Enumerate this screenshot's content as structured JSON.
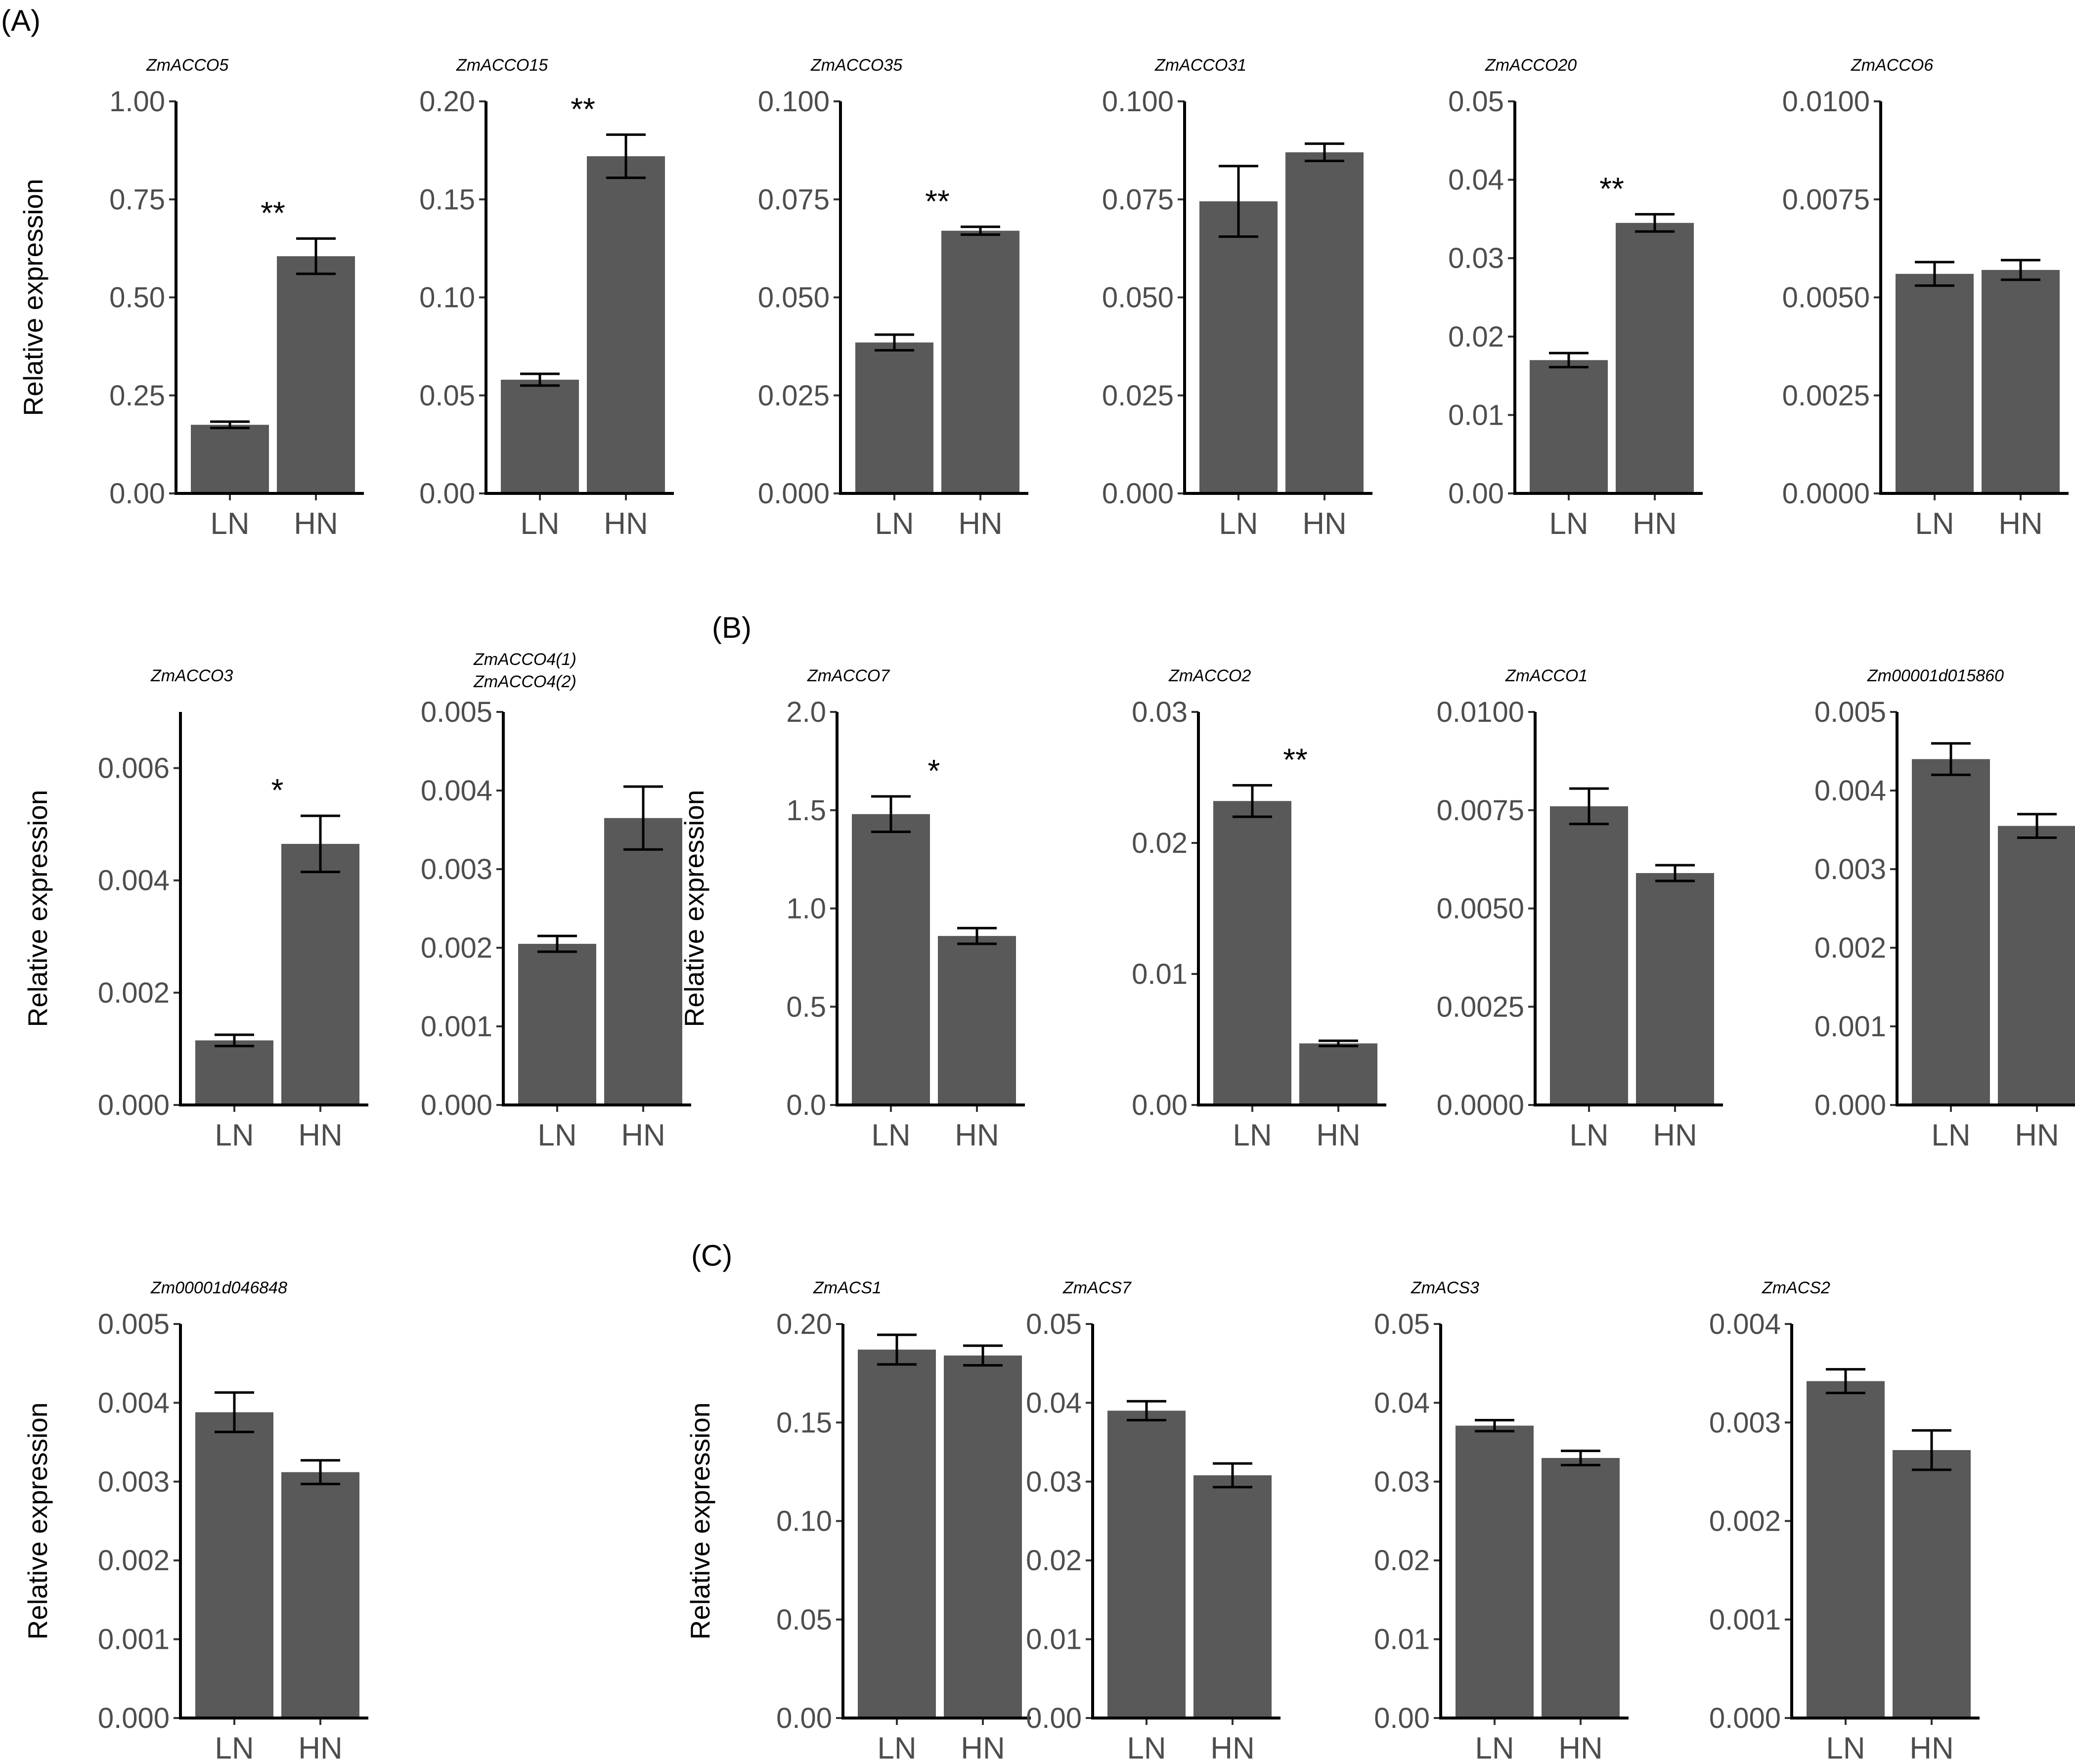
{
  "panel_labels": [
    "(A)",
    "(B)",
    "(C)"
  ],
  "chart_data": [
    {
      "type": "bar",
      "title": "ZmACCO5",
      "ylabel": "Relative expression",
      "categories": [
        "LN",
        "HN"
      ],
      "values": [
        0.175,
        0.605
      ],
      "errors": [
        0.008,
        0.045
      ],
      "ylim": [
        0,
        1.0
      ],
      "ticks": [
        0.0,
        0.25,
        0.5,
        0.75,
        1.0
      ],
      "tick_labels": [
        "0.00",
        "0.25",
        "0.50",
        "0.75",
        "1.00"
      ],
      "significance": "**"
    },
    {
      "type": "bar",
      "title": "ZmACCO15",
      "ylabel": "",
      "categories": [
        "LN",
        "HN"
      ],
      "values": [
        0.058,
        0.172
      ],
      "errors": [
        0.003,
        0.011
      ],
      "ylim": [
        0,
        0.2
      ],
      "ticks": [
        0,
        0.05,
        0.1,
        0.15,
        0.2
      ],
      "tick_labels": [
        "0.00",
        "0.05",
        "0.10",
        "0.15",
        "0.20"
      ],
      "significance": "**"
    },
    {
      "type": "bar",
      "title": "ZmACCO35",
      "ylabel": "",
      "categories": [
        "LN",
        "HN"
      ],
      "values": [
        0.0385,
        0.067
      ],
      "errors": [
        0.002,
        0.001
      ],
      "ylim": [
        0,
        0.1
      ],
      "ticks": [
        0,
        0.025,
        0.05,
        0.075,
        0.1
      ],
      "tick_labels": [
        "0.000",
        "0.025",
        "0.050",
        "0.075",
        "0.100"
      ],
      "significance": "**"
    },
    {
      "type": "bar",
      "title": "ZmACCO31",
      "ylabel": "",
      "categories": [
        "LN",
        "HN"
      ],
      "values": [
        0.0745,
        0.087
      ],
      "errors": [
        0.009,
        0.0022
      ],
      "ylim": [
        0,
        0.1
      ],
      "ticks": [
        0,
        0.025,
        0.05,
        0.075,
        0.1
      ],
      "tick_labels": [
        "0.000",
        "0.025",
        "0.050",
        "0.075",
        "0.100"
      ],
      "significance": ""
    },
    {
      "type": "bar",
      "title": "ZmACCO20",
      "ylabel": "",
      "categories": [
        "LN",
        "HN"
      ],
      "values": [
        0.017,
        0.0345
      ],
      "errors": [
        0.0009,
        0.0011
      ],
      "ylim": [
        0,
        0.05
      ],
      "ticks": [
        0,
        0.01,
        0.02,
        0.03,
        0.04,
        0.05
      ],
      "tick_labels": [
        "0.00",
        "0.01",
        "0.02",
        "0.03",
        "0.04",
        "0.05"
      ],
      "significance": "**"
    },
    {
      "type": "bar",
      "title": "ZmACCO6",
      "ylabel": "",
      "categories": [
        "LN",
        "HN"
      ],
      "values": [
        0.0056,
        0.0057
      ],
      "errors": [
        0.0003,
        0.00025
      ],
      "ylim": [
        0,
        0.01
      ],
      "ticks": [
        0,
        0.0025,
        0.005,
        0.0075,
        0.01
      ],
      "tick_labels": [
        "0.0000",
        "0.0025",
        "0.0050",
        "0.0075",
        "0.0100"
      ],
      "significance": ""
    },
    {
      "type": "bar",
      "title": "ZmACCO3",
      "ylabel": "Relative expression",
      "categories": [
        "LN",
        "HN"
      ],
      "values": [
        0.00115,
        0.00465
      ],
      "errors": [
        0.0001,
        0.0005
      ],
      "ylim": [
        0,
        0.007
      ],
      "ticks": [
        0,
        0.002,
        0.004,
        0.006
      ],
      "tick_labels": [
        "0.000",
        "0.002",
        "0.004",
        "0.006"
      ],
      "significance": "*"
    },
    {
      "type": "bar",
      "title": "ZmACCO4(1)",
      "title2": "ZmACCO4(2)",
      "ylabel": "",
      "categories": [
        "LN",
        "HN"
      ],
      "values": [
        0.00205,
        0.00365
      ],
      "errors": [
        0.0001,
        0.0004
      ],
      "ylim": [
        0,
        0.005
      ],
      "ticks": [
        0,
        0.001,
        0.002,
        0.003,
        0.004,
        0.005
      ],
      "tick_labels": [
        "0.000",
        "0.001",
        "0.002",
        "0.003",
        "0.004",
        "0.005"
      ],
      "significance": ""
    },
    {
      "type": "bar",
      "title": "ZmACCO7",
      "ylabel": "Relative expression",
      "categories": [
        "LN",
        "HN"
      ],
      "values": [
        1.48,
        0.86
      ],
      "errors": [
        0.09,
        0.04
      ],
      "ylim": [
        0,
        2.0
      ],
      "ticks": [
        0,
        0.5,
        1.0,
        1.5,
        2.0
      ],
      "tick_labels": [
        "0.0",
        "0.5",
        "1.0",
        "1.5",
        "2.0"
      ],
      "significance": "*"
    },
    {
      "type": "bar",
      "title": "ZmACCO2",
      "ylabel": "",
      "categories": [
        "LN",
        "HN"
      ],
      "values": [
        0.0232,
        0.0047
      ],
      "errors": [
        0.0012,
        0.0002
      ],
      "ylim": [
        0,
        0.03
      ],
      "ticks": [
        0,
        0.01,
        0.02,
        0.03
      ],
      "tick_labels": [
        "0.00",
        "0.01",
        "0.02",
        "0.03"
      ],
      "significance": "**"
    },
    {
      "type": "bar",
      "title": "ZmACCO1",
      "ylabel": "",
      "categories": [
        "LN",
        "HN"
      ],
      "values": [
        0.0076,
        0.0059
      ],
      "errors": [
        0.00045,
        0.0002
      ],
      "ylim": [
        0,
        0.01
      ],
      "ticks": [
        0,
        0.0025,
        0.005,
        0.0075,
        0.01
      ],
      "tick_labels": [
        "0.0000",
        "0.0025",
        "0.0050",
        "0.0075",
        "0.0100"
      ],
      "significance": ""
    },
    {
      "type": "bar",
      "title": "Zm00001d015860",
      "ylabel": "",
      "categories": [
        "LN",
        "HN"
      ],
      "values": [
        0.0044,
        0.00355
      ],
      "errors": [
        0.0002,
        0.00015
      ],
      "ylim": [
        0,
        0.005
      ],
      "ticks": [
        0,
        0.001,
        0.002,
        0.003,
        0.004,
        0.005
      ],
      "tick_labels": [
        "0.000",
        "0.001",
        "0.002",
        "0.003",
        "0.004",
        "0.005"
      ],
      "significance": ""
    },
    {
      "type": "bar",
      "title": "Zm00001d046848",
      "ylabel": "Relative expression",
      "categories": [
        "LN",
        "HN"
      ],
      "values": [
        0.00388,
        0.00312
      ],
      "errors": [
        0.00025,
        0.00015
      ],
      "ylim": [
        0,
        0.005
      ],
      "ticks": [
        0,
        0.001,
        0.002,
        0.003,
        0.004,
        0.005
      ],
      "tick_labels": [
        "0.000",
        "0.001",
        "0.002",
        "0.003",
        "0.004",
        "0.005"
      ],
      "significance": ""
    },
    {
      "type": "bar",
      "title": "ZmACS1",
      "ylabel": "Relative expression",
      "categories": [
        "LN",
        "HN"
      ],
      "values": [
        0.187,
        0.184
      ],
      "errors": [
        0.0075,
        0.005
      ],
      "ylim": [
        0,
        0.2
      ],
      "ticks": [
        0,
        0.05,
        0.1,
        0.15,
        0.2
      ],
      "tick_labels": [
        "0.00",
        "0.05",
        "0.10",
        "0.15",
        "0.20"
      ],
      "significance": ""
    },
    {
      "type": "bar",
      "title": "ZmACS7",
      "ylabel": "",
      "categories": [
        "LN",
        "HN"
      ],
      "values": [
        0.039,
        0.0308
      ],
      "errors": [
        0.0012,
        0.0015
      ],
      "ylim": [
        0,
        0.05
      ],
      "ticks": [
        0,
        0.01,
        0.02,
        0.03,
        0.04,
        0.05
      ],
      "tick_labels": [
        "0.00",
        "0.01",
        "0.02",
        "0.03",
        "0.04",
        "0.05"
      ],
      "significance": ""
    },
    {
      "type": "bar",
      "title": "ZmACS3",
      "ylabel": "",
      "categories": [
        "LN",
        "HN"
      ],
      "values": [
        0.0371,
        0.033
      ],
      "errors": [
        0.0007,
        0.0009
      ],
      "ylim": [
        0,
        0.05
      ],
      "ticks": [
        0,
        0.01,
        0.02,
        0.03,
        0.04,
        0.05
      ],
      "tick_labels": [
        "0.00",
        "0.01",
        "0.02",
        "0.03",
        "0.04",
        "0.05"
      ],
      "significance": ""
    },
    {
      "type": "bar",
      "title": "ZmACS2",
      "ylabel": "",
      "categories": [
        "LN",
        "HN"
      ],
      "values": [
        0.00342,
        0.00272
      ],
      "errors": [
        0.00012,
        0.0002
      ],
      "ylim": [
        0,
        0.004
      ],
      "ticks": [
        0,
        0.001,
        0.002,
        0.003,
        0.004
      ],
      "tick_labels": [
        "0.000",
        "0.001",
        "0.002",
        "0.003",
        "0.004"
      ],
      "significance": ""
    }
  ]
}
